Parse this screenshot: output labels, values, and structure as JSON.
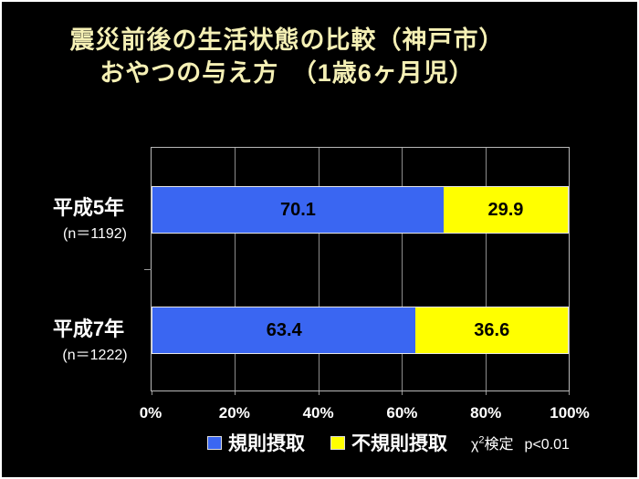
{
  "title": {
    "line1": "震災前後の生活状態の比較（神戸市）",
    "line2": "おやつの与え方　（1歳6ヶ月児）",
    "color": "#F5F0B5"
  },
  "chart_data": {
    "type": "bar",
    "orientation": "horizontal-stacked",
    "title": "震災前後の生活状態の比較（神戸市） おやつの与え方（1歳6ヶ月児）",
    "categories": [
      "平成5年",
      "平成7年"
    ],
    "category_sublabels": [
      "(n＝1192)",
      "(n＝1222)"
    ],
    "series": [
      {
        "name": "規則摂取",
        "color": "#3A66F2",
        "values": [
          70.1,
          63.4
        ]
      },
      {
        "name": "不規則摂取",
        "color": "#FFFF00",
        "values": [
          29.9,
          36.6
        ]
      }
    ],
    "x_ticks": [
      "0%",
      "20%",
      "40%",
      "60%",
      "80%",
      "100%"
    ],
    "xlim": [
      0,
      100
    ],
    "grid": "vertical-only",
    "legend_position": "bottom",
    "plot_background": "#000000",
    "value_label_color": "#000000"
  },
  "annotation": {
    "chi_symbol": "χ",
    "chi_sup": "2",
    "chi_suffix": "検定",
    "p_value": "p<0.01"
  }
}
